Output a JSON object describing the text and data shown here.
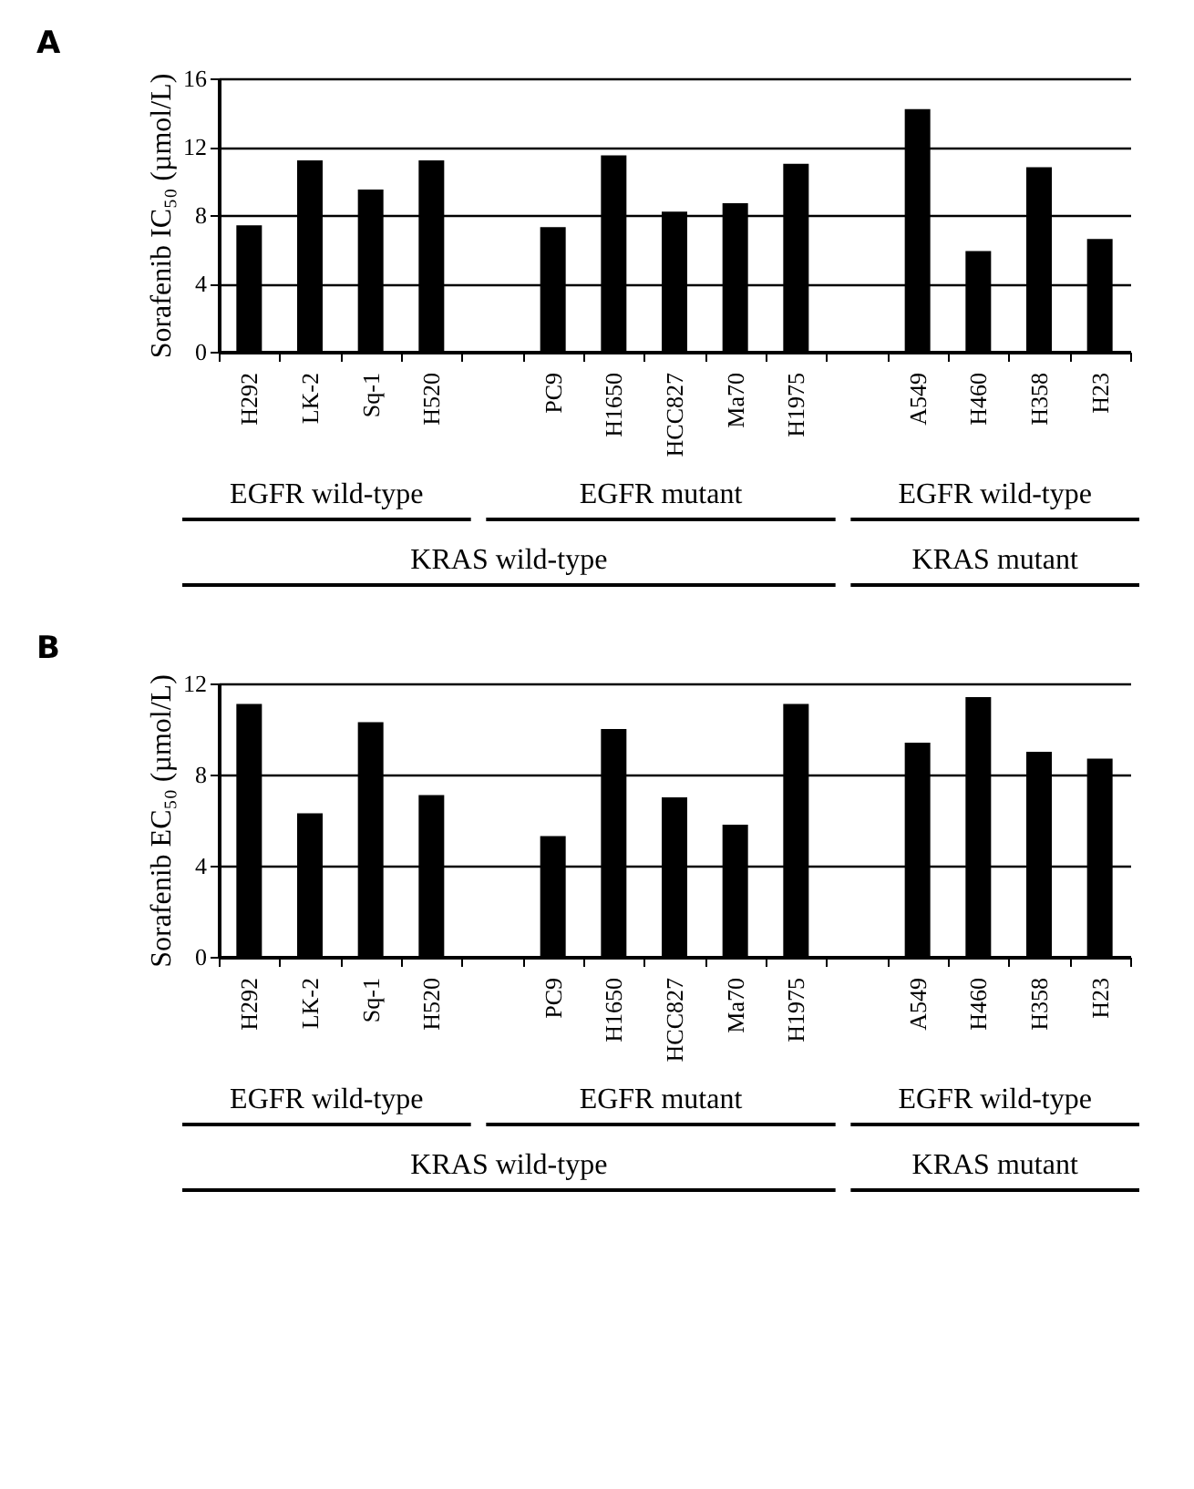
{
  "chart_data": [
    {
      "type": "bar",
      "title": "A",
      "ylabel": "Sorafenib IC₅₀ (µmol/L)",
      "categories": [
        "H292",
        "LK-2",
        "Sq-1",
        "H520",
        null,
        "PC9",
        "H1650",
        "HCC827",
        "Ma70",
        "H1975",
        null,
        "A549",
        "H460",
        "H358",
        "H23"
      ],
      "values": [
        7.4,
        11.2,
        9.5,
        11.2,
        null,
        7.3,
        11.5,
        8.2,
        8.7,
        11.0,
        null,
        14.2,
        5.9,
        10.8,
        6.6
      ],
      "color": "#000000",
      "ylim": [
        0,
        16
      ],
      "yticks": [
        0,
        4,
        8,
        12,
        16
      ],
      "grid": "y",
      "annotations": [
        "EGFR wild-type",
        "EGFR mutant",
        "EGFR wild-type",
        "KRAS wild-type",
        "KRAS mutant"
      ]
    },
    {
      "type": "bar",
      "title": "B",
      "ylabel": "Sorafenib EC₅₀ (µmol/L)",
      "categories": [
        "H292",
        "LK-2",
        "Sq-1",
        "H520",
        null,
        "PC9",
        "H1650",
        "HCC827",
        "Ma70",
        "H1975",
        null,
        "A549",
        "H460",
        "H358",
        "H23"
      ],
      "values": [
        11.1,
        6.3,
        10.3,
        7.1,
        null,
        5.3,
        10.0,
        7.0,
        5.8,
        11.1,
        null,
        9.4,
        11.4,
        9.0,
        8.7
      ],
      "color": "#000000",
      "ylim": [
        0,
        12
      ],
      "yticks": [
        0,
        4,
        8,
        12
      ],
      "grid": "y",
      "annotations": [
        "EGFR wild-type",
        "EGFR mutant",
        "EGFR wild-type",
        "KRAS wild-type",
        "KRAS mutant"
      ]
    }
  ]
}
